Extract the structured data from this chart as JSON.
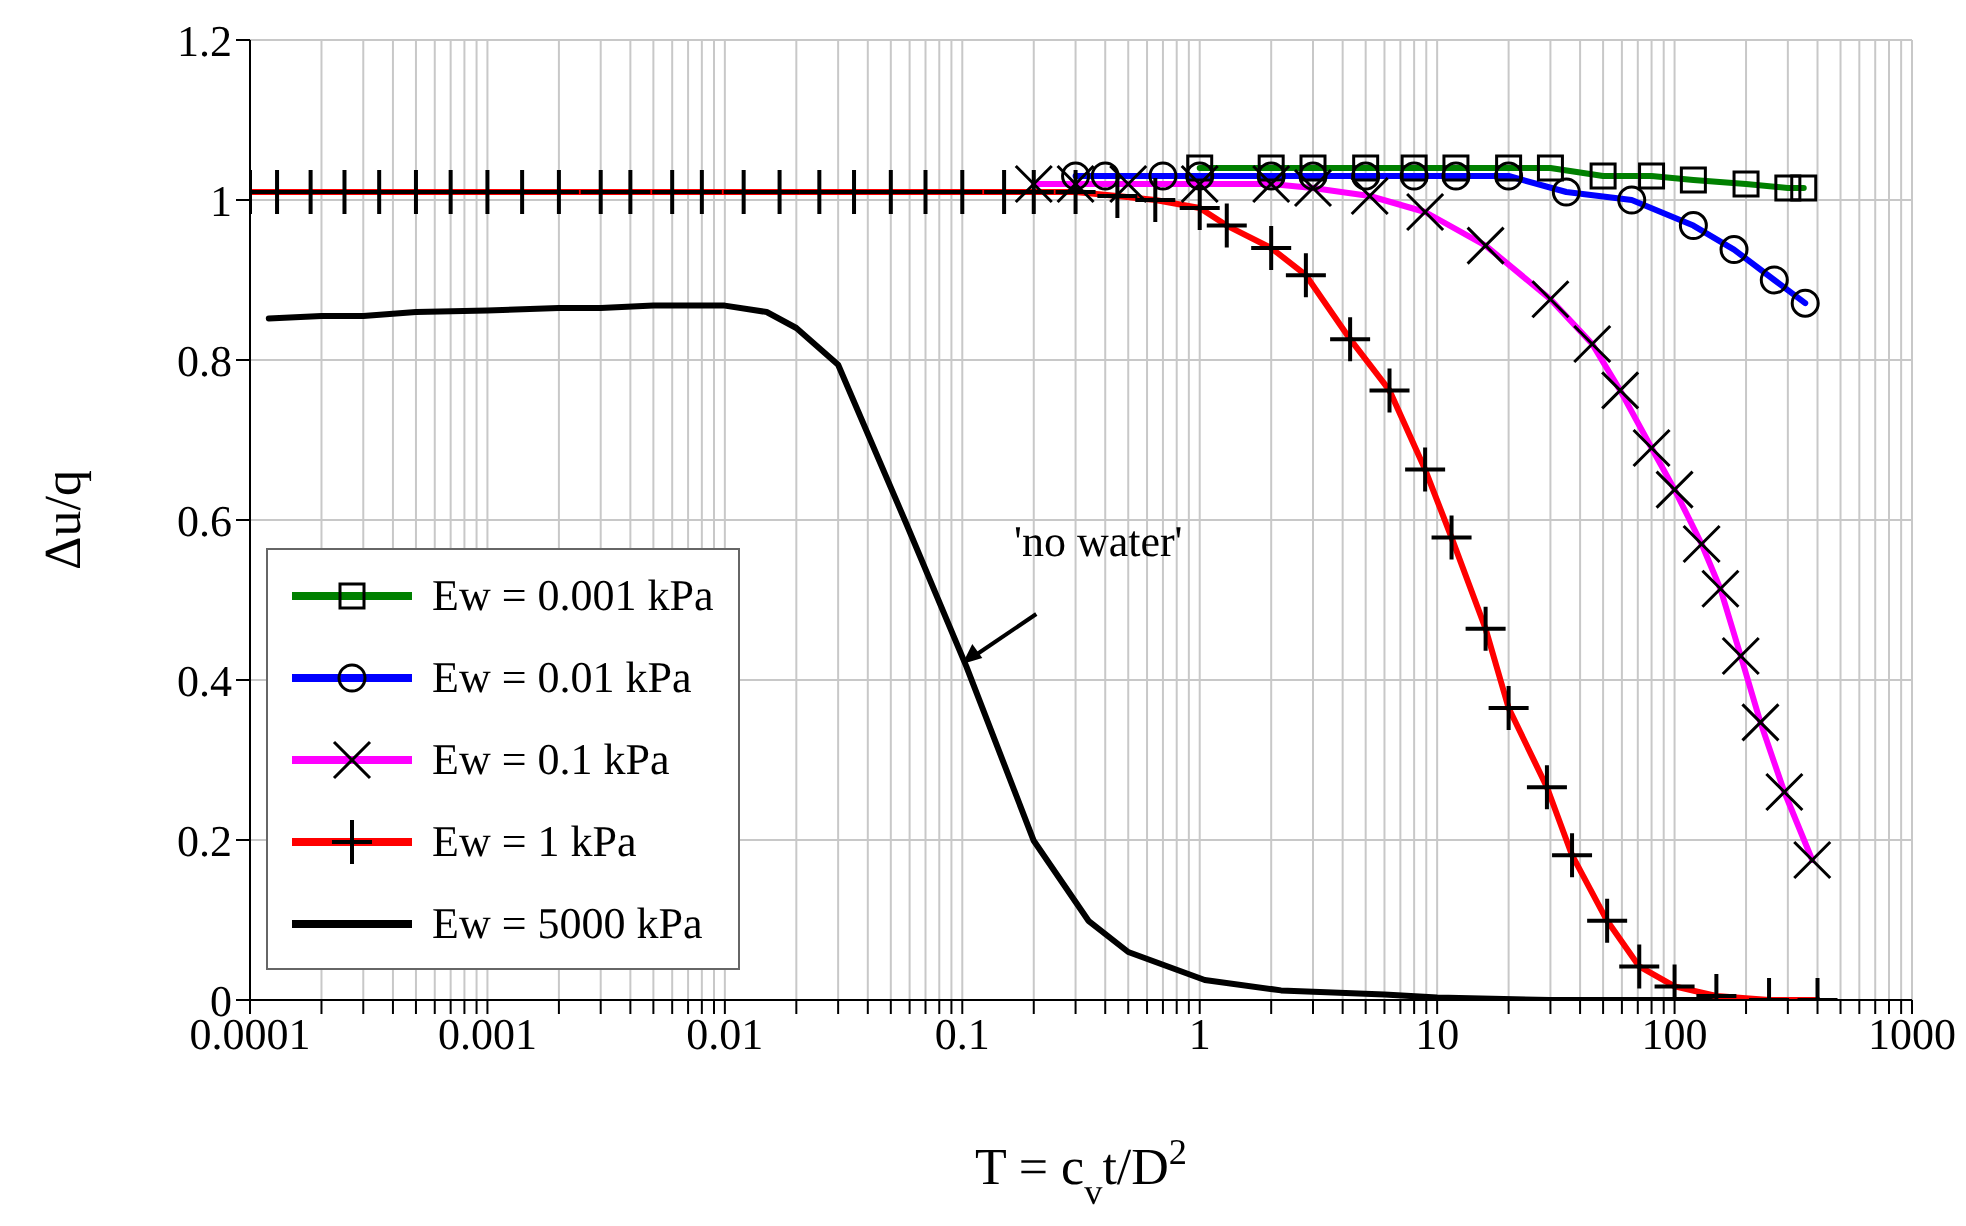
{
  "chart_data": {
    "type": "line",
    "xlabel": "T = c$_{v}$t/D$^{2}$",
    "ylabel": "Δu/q",
    "log": "x",
    "grid": true,
    "legend": "bottom left",
    "line_style": "solid",
    "xlim": [
      0.0001,
      1000
    ],
    "ylim": [
      0,
      1.2
    ],
    "yticks": [
      0,
      0.2,
      0.4,
      0.6,
      0.8,
      1,
      1.2
    ],
    "xticks": [
      0.0001,
      {
        "value": 0.0002,
        "label": null
      },
      {
        "value": 0.0003,
        "label": null
      },
      {
        "value": 0.0004,
        "label": null
      },
      {
        "value": 0.0005,
        "label": null
      },
      {
        "value": 0.0006,
        "label": null
      },
      {
        "value": 0.0007,
        "label": null
      },
      {
        "value": 0.0008,
        "label": null
      },
      {
        "value": 0.0009,
        "label": null
      },
      0.001,
      {
        "value": 0.002,
        "label": null
      },
      {
        "value": 0.003,
        "label": null
      },
      {
        "value": 0.004,
        "label": null
      },
      {
        "value": 0.005,
        "label": null
      },
      {
        "value": 0.006,
        "label": null
      },
      {
        "value": 0.007,
        "label": null
      },
      {
        "value": 0.008,
        "label": null
      },
      {
        "value": 0.009,
        "label": null
      },
      0.01,
      {
        "value": 0.02,
        "label": null
      },
      {
        "value": 0.03,
        "label": null
      },
      {
        "value": 0.04,
        "label": null
      },
      {
        "value": 0.05,
        "label": null
      },
      {
        "value": 0.06,
        "label": null
      },
      {
        "value": 0.07,
        "label": null
      },
      {
        "value": 0.08,
        "label": null
      },
      {
        "value": 0.09,
        "label": null
      },
      0.1,
      {
        "value": 0.2,
        "label": null
      },
      {
        "value": 0.3,
        "label": null
      },
      {
        "value": 0.4,
        "label": null
      },
      {
        "value": 0.5,
        "label": null
      },
      {
        "value": 0.6,
        "label": null
      },
      {
        "value": 0.7,
        "label": null
      },
      {
        "value": 0.8,
        "label": null
      },
      {
        "value": 0.9,
        "label": null
      },
      1,
      {
        "value": 2,
        "label": null
      },
      {
        "value": 3,
        "label": null
      },
      {
        "value": 4,
        "label": null
      },
      {
        "value": 5,
        "label": null
      },
      {
        "value": 6,
        "label": null
      },
      {
        "value": 7,
        "label": null
      },
      {
        "value": 8,
        "label": null
      },
      {
        "value": 9,
        "label": null
      },
      10,
      {
        "value": 20,
        "label": null
      },
      {
        "value": 30,
        "label": null
      },
      {
        "value": 40,
        "label": null
      },
      {
        "value": 50,
        "label": null
      },
      {
        "value": 60,
        "label": null
      },
      {
        "value": 70,
        "label": null
      },
      {
        "value": 80,
        "label": null
      },
      {
        "value": 90,
        "label": null
      },
      100,
      {
        "value": 200,
        "label": null
      },
      {
        "value": 300,
        "label": null
      },
      {
        "value": 400,
        "label": null
      },
      {
        "value": 500,
        "label": null
      },
      {
        "value": 600,
        "label": null
      },
      {
        "value": 700,
        "label": null
      },
      {
        "value": 800,
        "label": null
      },
      {
        "value": 900,
        "label": null
      },
      1000
    ],
    "annotations": [
      {
        "text": "'no water'",
        "x": 0.1,
        "y": 0.42
      }
    ],
    "series": [
      {
        "name": "Ew = 0.001 kPa",
        "color": "#008000",
        "marker": "square",
        "x": [
          1,
          2,
          3,
          5,
          8,
          12,
          20,
          30,
          50,
          80,
          120,
          200,
          300,
          350
        ],
        "values": [
          1.04,
          1.04,
          1.04,
          1.04,
          1.04,
          1.04,
          1.04,
          1.04,
          1.03,
          1.03,
          1.025,
          1.02,
          1.015,
          1.015
        ]
      },
      {
        "name": "Ew = 0.01 kPa",
        "color": "#0000ff",
        "marker": "circle",
        "x": [
          0.3,
          0.4,
          0.7,
          1,
          2,
          3,
          5,
          8,
          12,
          20,
          35,
          66,
          120,
          178,
          263,
          355
        ],
        "values": [
          1.03,
          1.03,
          1.03,
          1.03,
          1.03,
          1.03,
          1.03,
          1.03,
          1.03,
          1.03,
          1.01,
          1.0,
          0.968,
          0.938,
          0.9,
          0.871
        ]
      },
      {
        "name": "Ew = 0.1 kPa",
        "color": "#ff00ff",
        "marker": "x",
        "x": [
          0.2,
          0.3,
          0.5,
          1,
          2,
          3,
          5.2,
          8.9,
          16,
          30,
          45,
          59,
          80,
          100,
          130,
          156,
          190,
          230,
          290,
          380
        ],
        "values": [
          1.02,
          1.02,
          1.02,
          1.02,
          1.02,
          1.015,
          1.005,
          0.985,
          0.943,
          0.876,
          0.82,
          0.762,
          0.69,
          0.638,
          0.57,
          0.514,
          0.43,
          0.347,
          0.26,
          0.175
        ]
      },
      {
        "name": "Ew = 1 kPa",
        "color": "#ff0000",
        "marker": "cross",
        "x": [
          0.0001,
          0.00013,
          0.00018,
          0.00025,
          0.00035,
          0.0005,
          0.0007,
          0.001,
          0.0014,
          0.002,
          0.003,
          0.004,
          0.006,
          0.008,
          0.012,
          0.017,
          0.025,
          0.035,
          0.05,
          0.07,
          0.1,
          0.15,
          0.2,
          0.3,
          0.45,
          0.65,
          1,
          1.3,
          2,
          2.8,
          4.3,
          6.3,
          8.9,
          11.5,
          16,
          20,
          29,
          37,
          52,
          71,
          100,
          150,
          250,
          400
        ],
        "values": [
          1.01,
          1.01,
          1.01,
          1.01,
          1.01,
          1.01,
          1.01,
          1.01,
          1.01,
          1.01,
          1.01,
          1.01,
          1.01,
          1.01,
          1.01,
          1.01,
          1.01,
          1.01,
          1.01,
          1.01,
          1.01,
          1.01,
          1.01,
          1.01,
          1.005,
          1.0,
          0.99,
          0.968,
          0.94,
          0.906,
          0.826,
          0.762,
          0.663,
          0.578,
          0.464,
          0.365,
          0.266,
          0.181,
          0.099,
          0.042,
          0.017,
          0.005,
          0,
          0
        ]
      },
      {
        "name": "Ew = 5000 kPa",
        "color": "#000000",
        "marker": "none",
        "x": [
          0.00012,
          0.0002,
          0.0003,
          0.0005,
          0.001,
          0.002,
          0.003,
          0.005,
          0.01,
          0.015,
          0.02,
          0.03,
          0.058,
          0.104,
          0.2,
          0.34,
          0.5,
          1.05,
          2.2,
          6,
          10,
          30,
          100,
          400
        ],
        "values": [
          0.852,
          0.855,
          0.855,
          0.86,
          0.862,
          0.865,
          0.865,
          0.868,
          0.868,
          0.86,
          0.84,
          0.794,
          0.596,
          0.417,
          0.199,
          0.099,
          0.06,
          0.025,
          0.012,
          0.007,
          0.003,
          0,
          0,
          0
        ]
      }
    ]
  }
}
